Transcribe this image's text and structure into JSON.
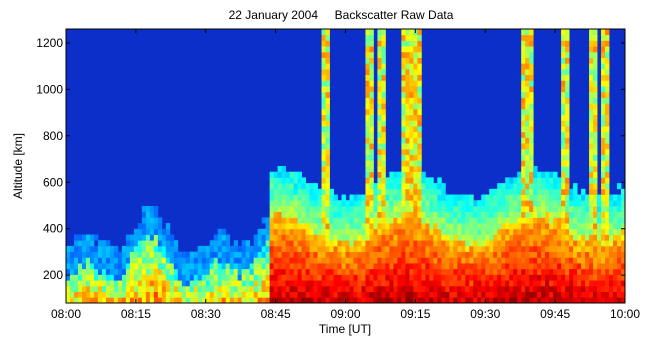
{
  "chart_data": {
    "type": "heatmap",
    "title": "22 January 2004     Backscatter Raw Data",
    "xlabel": "Time [UT]",
    "ylabel": "Altitude [km]",
    "xlim": [
      "08:00",
      "10:00"
    ],
    "ylim": [
      80,
      1260
    ],
    "x_ticks": [
      "08:00",
      "08:15",
      "08:30",
      "08:45",
      "09:00",
      "09:15",
      "09:30",
      "09:45",
      "10:00"
    ],
    "y_ticks": [
      200,
      400,
      600,
      800,
      1000,
      1200
    ],
    "colormap": [
      "#00008f",
      "#0000ff",
      "#0080ff",
      "#00ffff",
      "#80ff80",
      "#ffff00",
      "#ff8000",
      "#ff0000",
      "#800000"
    ],
    "background_level": "dark blue",
    "features": [
      {
        "description": "enhanced backscatter layer",
        "time_range": [
          "08:00",
          "08:44"
        ],
        "altitude_range": [
          80,
          300
        ]
      },
      {
        "description": "strong backscatter layer",
        "time_range": [
          "08:44",
          "10:00"
        ],
        "altitude_range": [
          80,
          400
        ]
      },
      {
        "description": "vertical streaks",
        "times": [
          "08:56",
          "09:05",
          "09:08",
          "09:13",
          "09:14",
          "09:15",
          "09:39",
          "09:47",
          "09:53",
          "09:56"
        ],
        "altitude_range": [
          300,
          1260
        ]
      }
    ],
    "grid": false,
    "colorbar": false
  }
}
